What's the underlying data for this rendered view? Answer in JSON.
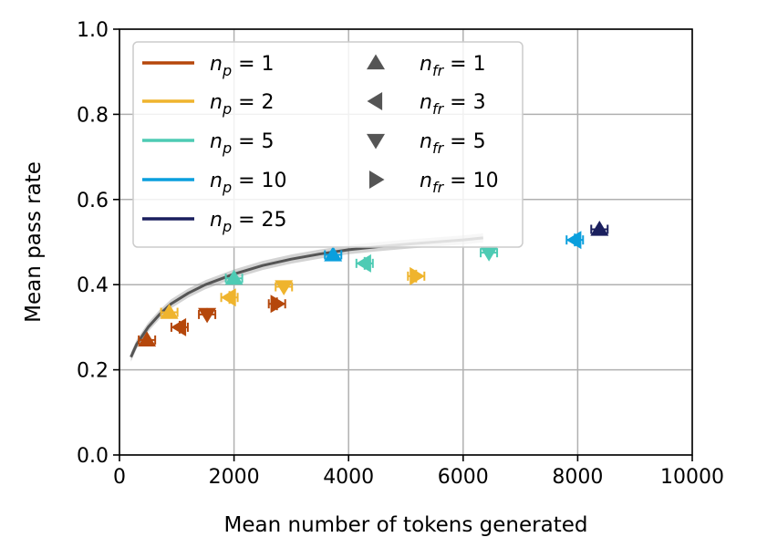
{
  "chart_data": {
    "type": "scatter",
    "xlabel": "Mean number of tokens generated",
    "ylabel": "Mean pass rate",
    "xlim": [
      0,
      10000
    ],
    "ylim": [
      0.0,
      1.0
    ],
    "x_ticks": [
      "0",
      "2000",
      "4000",
      "6000",
      "8000",
      "10000"
    ],
    "y_ticks": [
      "0.0",
      "0.2",
      "0.4",
      "0.6",
      "0.8",
      "1.0"
    ],
    "grid": true,
    "legend_position": "top-left",
    "colors": {
      "np1": "#b5470b",
      "np2": "#efb42d",
      "np5": "#4ecbb4",
      "np10": "#0a9fdd",
      "np25": "#1a1f5e",
      "curve": "#555555",
      "marker_legend": "#555555"
    },
    "legend_color": [
      {
        "key": "np1",
        "sym": "n",
        "sub": "p",
        "value": "1"
      },
      {
        "key": "np2",
        "sym": "n",
        "sub": "p",
        "value": "2"
      },
      {
        "key": "np5",
        "sym": "n",
        "sub": "p",
        "value": "5"
      },
      {
        "key": "np10",
        "sym": "n",
        "sub": "p",
        "value": "10"
      },
      {
        "key": "np25",
        "sym": "n",
        "sub": "p",
        "value": "25"
      }
    ],
    "legend_marker": [
      {
        "marker": "triangle-up",
        "sym": "n",
        "sub": "fr",
        "value": "1"
      },
      {
        "marker": "triangle-left",
        "sym": "n",
        "sub": "fr",
        "value": "3"
      },
      {
        "marker": "triangle-down",
        "sym": "n",
        "sub": "fr",
        "value": "5"
      },
      {
        "marker": "triangle-right",
        "sym": "n",
        "sub": "fr",
        "value": "10"
      }
    ],
    "curve": {
      "name": "reference",
      "x": [
        200,
        300,
        400,
        500,
        700,
        900,
        1200,
        1500,
        2000,
        2500,
        3000,
        3500,
        4000,
        4500,
        5000,
        5500,
        6000,
        6350
      ],
      "y": [
        0.23,
        0.26,
        0.28,
        0.3,
        0.33,
        0.355,
        0.38,
        0.4,
        0.425,
        0.445,
        0.46,
        0.472,
        0.482,
        0.489,
        0.495,
        0.5,
        0.505,
        0.51
      ]
    },
    "points": [
      {
        "np": 1,
        "nfr": 1,
        "marker": "triangle-up",
        "x": 480,
        "y": 0.27
      },
      {
        "np": 1,
        "nfr": 3,
        "marker": "triangle-left",
        "x": 1050,
        "y": 0.3
      },
      {
        "np": 1,
        "nfr": 5,
        "marker": "triangle-down",
        "x": 1530,
        "y": 0.33
      },
      {
        "np": 1,
        "nfr": 10,
        "marker": "triangle-right",
        "x": 2750,
        "y": 0.355
      },
      {
        "np": 2,
        "nfr": 1,
        "marker": "triangle-up",
        "x": 870,
        "y": 0.335
      },
      {
        "np": 2,
        "nfr": 3,
        "marker": "triangle-left",
        "x": 1920,
        "y": 0.37
      },
      {
        "np": 2,
        "nfr": 5,
        "marker": "triangle-down",
        "x": 2870,
        "y": 0.395
      },
      {
        "np": 2,
        "nfr": 10,
        "marker": "triangle-right",
        "x": 5180,
        "y": 0.42
      },
      {
        "np": 5,
        "nfr": 1,
        "marker": "triangle-up",
        "x": 2000,
        "y": 0.415
      },
      {
        "np": 5,
        "nfr": 3,
        "marker": "triangle-left",
        "x": 4280,
        "y": 0.45
      },
      {
        "np": 5,
        "nfr": 5,
        "marker": "triangle-down",
        "x": 6450,
        "y": 0.475
      },
      {
        "np": 10,
        "nfr": 1,
        "marker": "triangle-up",
        "x": 3730,
        "y": 0.47
      },
      {
        "np": 10,
        "nfr": 3,
        "marker": "triangle-left",
        "x": 7950,
        "y": 0.505
      },
      {
        "np": 25,
        "nfr": 1,
        "marker": "triangle-up",
        "x": 8380,
        "y": 0.53
      }
    ]
  }
}
